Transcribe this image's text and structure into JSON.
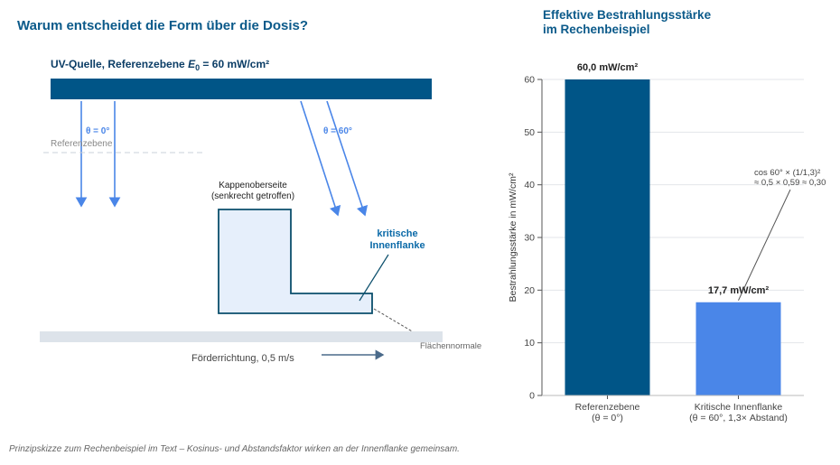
{
  "left": {
    "title": "Warum entscheidet die Form über die Dosis?",
    "source_label_prefix": "UV-Quelle, Referenzebene ",
    "source_label_symbol": "E",
    "source_label_sub": "0",
    "source_label_suffix": " = 60 mW/cm²",
    "angle_0": "θ = 0°",
    "angle_60": "θ = 60°",
    "reference_plane": "Referenzebene",
    "cap_label_1": "Kappenoberseite",
    "cap_label_2": "(senkrecht getroffen)",
    "critical_label_1": "kritische",
    "critical_label_2": "Innenflanke",
    "normal_label": "Flächennormale",
    "conveyor_label": "Förderrichtung, 0,5 m/s"
  },
  "caption": "Prinzipskizze zum Rechenbeispiel im Text – Kosinus- und Abstandsfaktor wirken an der Innenflanke gemeinsam.",
  "chart_title_1": "Effektive Bestrahlungsstärke",
  "chart_title_2": "im Rechenbeispiel",
  "colors": {
    "dark_blue": "#005587",
    "light_blue": "#4a86e8",
    "title": "#0b5a8a"
  },
  "chart_data": {
    "type": "bar",
    "title": "Effektive Bestrahlungsstärke im Rechenbeispiel",
    "ylabel": "Bestrahlungsstärke in mW/cm²",
    "ylim": [
      0,
      60
    ],
    "yticks": [
      0,
      10,
      20,
      30,
      40,
      50,
      60
    ],
    "grid": true,
    "categories": [
      {
        "line1": "Referenzebene",
        "line2": "(θ = 0°)"
      },
      {
        "line1": "Kritische Innenflanke",
        "line2": "(θ = 60°, 1,3× Abstand)"
      }
    ],
    "values": [
      60.0,
      17.7
    ],
    "value_labels": [
      "60,0 mW/cm²",
      "17,7 mW/cm²"
    ],
    "bar_colors": [
      "#005587",
      "#4a86e8"
    ],
    "annotation": {
      "line1": "cos 60° × (1/1,3)²",
      "line2": "≈ 0,5 × 0,59 ≈ 0,30"
    }
  }
}
